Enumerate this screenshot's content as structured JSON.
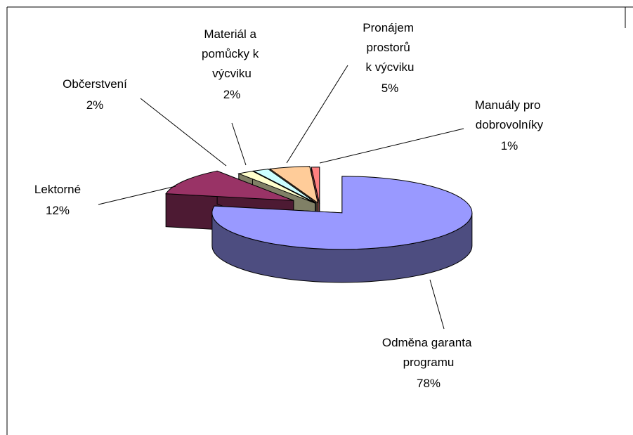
{
  "chart_data": {
    "type": "pie3d",
    "categories": [
      "Odměna garanta programu",
      "Lektorné",
      "Občerstvení",
      "Materiál a pomůcky k výcviku",
      "Pronájem prostorů k výcviku",
      "Manuály pro dobrovolníky"
    ],
    "values": [
      78,
      12,
      2,
      2,
      5,
      1
    ],
    "value_labels": [
      "78%",
      "12%",
      "2%",
      "2%",
      "5%",
      "1%"
    ],
    "colors": [
      "#9999ff",
      "#993366",
      "#ffffcc",
      "#ccffff",
      "#ffcc99",
      "#ff8080"
    ]
  }
}
